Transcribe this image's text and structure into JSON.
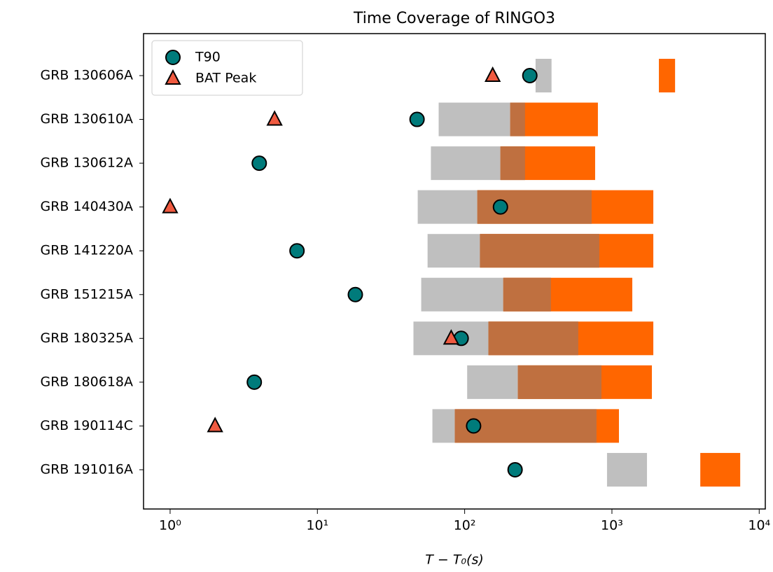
{
  "chart_data": {
    "type": "timeline",
    "title": "Time Coverage of RINGO3",
    "x_label": "T − T₀(s)",
    "categories": [
      "GRB 130606A",
      "GRB 130610A",
      "GRB 130612A",
      "GRB 140430A",
      "GRB 141220A",
      "GRB 151215A",
      "GRB 180325A",
      "GRB 180618A",
      "GRB 190114C",
      "GRB 191016A"
    ],
    "bars": [
      {
        "color": "#bfbfbf",
        "start": [
          303,
          66.6,
          59,
          48,
          56,
          50.7,
          44.9,
          104,
          60.4,
          926
        ],
        "end": [
          389,
          257,
          257,
          728,
          821,
          385,
          591,
          849,
          786,
          1730
        ]
      },
      {
        "color": "#ff6600",
        "start": [
          2084,
          204,
          175,
          122,
          127,
          183,
          145,
          230,
          85.8,
          3981
        ],
        "end": [
          2684,
          803,
          769,
          1910,
          1910,
          1375,
          1910,
          1868,
          1116,
          7430
        ]
      }
    ],
    "overlap_color": "#bf7040",
    "series": [
      {
        "name": "T90",
        "color": "#007b7b",
        "marker": "circle",
        "values": [
          277,
          47.5,
          4.03,
          175,
          7.27,
          18.1,
          94.7,
          3.73,
          115,
          220
        ]
      },
      {
        "name": "BAT Peak",
        "color": "#f05a40",
        "marker": "triangle",
        "values": [
          155,
          5.12,
          null,
          1.0,
          null,
          null,
          81,
          null,
          2.02,
          null
        ]
      }
    ],
    "xscale": "log",
    "xlim": [
      0.66,
      11000
    ],
    "xticks": [
      {
        "value": 1,
        "label": "10⁰"
      },
      {
        "value": 10,
        "label": "10¹"
      },
      {
        "value": 100,
        "label": "10²"
      },
      {
        "value": 1000,
        "label": "10³"
      },
      {
        "value": 10000,
        "label": "10⁴"
      }
    ],
    "legend": "upper left"
  }
}
